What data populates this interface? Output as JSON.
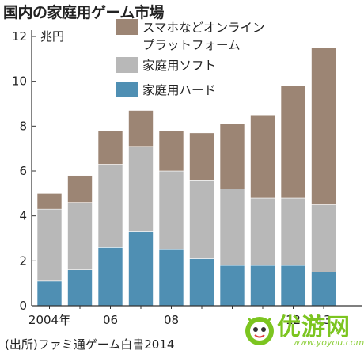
{
  "title": "国内の家庭用ゲーム市場",
  "source": "(出所)ファミ通ゲーム白書2014",
  "watermark": {
    "text": "优游网",
    "url": "www.yoyou.com"
  },
  "colors": {
    "online": "#9c8574",
    "software": "#b8b8b8",
    "hardware": "#4f8fb3",
    "stroke": "#ffffff",
    "axis": "#333333"
  },
  "chart_data": {
    "type": "bar",
    "stacked": true,
    "y_unit": "兆円",
    "ylim": [
      0,
      12
    ],
    "yticks": [
      0,
      2,
      4,
      6,
      8,
      10,
      12
    ],
    "categories": [
      "2004",
      "2005",
      "2006",
      "2007",
      "2008",
      "2009",
      "2010",
      "2011",
      "2012",
      "2013"
    ],
    "xtick_labels": [
      "2004年",
      "",
      "06",
      "",
      "08",
      "",
      "",
      "",
      "12",
      "13"
    ],
    "legend_position": "top-right",
    "series": [
      {
        "name": "家庭用ハード",
        "key": "hardware",
        "values": [
          1.1,
          1.6,
          2.6,
          3.3,
          2.5,
          2.1,
          1.8,
          1.8,
          1.8,
          1.5
        ]
      },
      {
        "name": "家庭用ソフト",
        "key": "software",
        "values": [
          3.2,
          3.0,
          3.7,
          3.8,
          3.5,
          3.5,
          3.4,
          3.0,
          3.0,
          3.0
        ]
      },
      {
        "name": "スマホなどオンライン\nプラットフォーム",
        "key": "online",
        "values": [
          0.7,
          1.2,
          1.5,
          1.6,
          1.8,
          2.1,
          2.9,
          3.7,
          5.0,
          7.0
        ]
      }
    ]
  }
}
